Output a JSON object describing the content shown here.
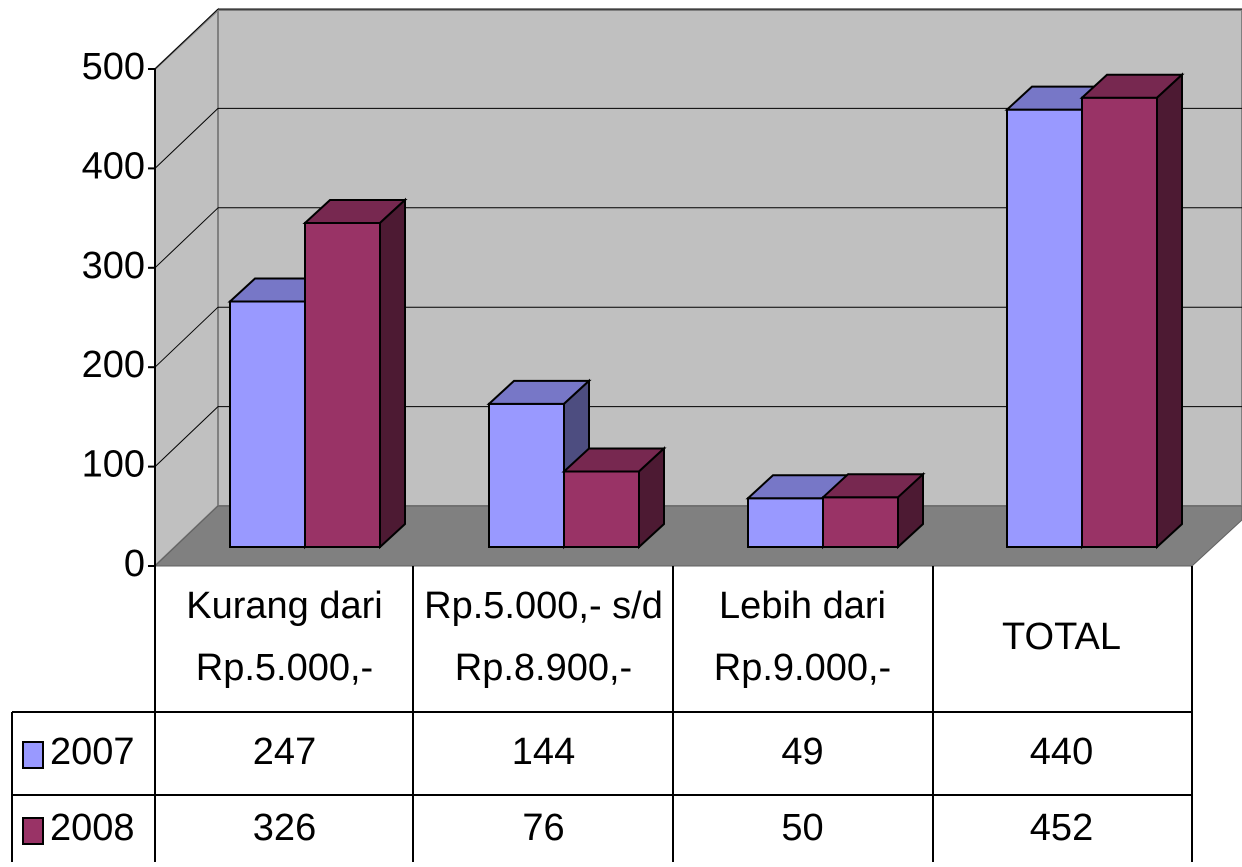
{
  "chart_data": {
    "type": "bar3d",
    "categories": [
      [
        "Kurang dari",
        "Rp.5.000,-"
      ],
      [
        "Rp.5.000,- s/d",
        "Rp.8.900,-"
      ],
      [
        "Lebih dari",
        "Rp.9.000,-"
      ],
      [
        "TOTAL"
      ]
    ],
    "series": [
      {
        "name": "2007",
        "color": "#9999ff",
        "values": [
          247,
          144,
          49,
          440
        ]
      },
      {
        "name": "2008",
        "color": "#993366",
        "values": [
          326,
          76,
          50,
          452
        ]
      }
    ],
    "ylim": [
      0,
      500
    ],
    "yticks": [
      0,
      100,
      200,
      300,
      400,
      500
    ],
    "grid": true
  }
}
